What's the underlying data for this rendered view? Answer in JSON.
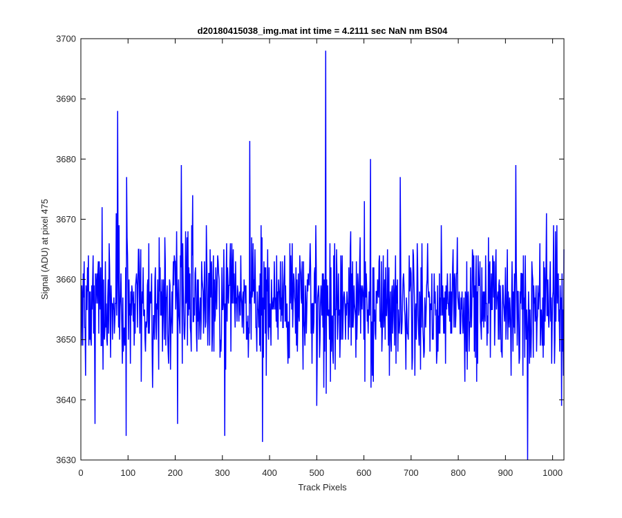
{
  "chart_data": {
    "type": "line",
    "title": "d20180415038_img.mat int time = 4.2111 sec  NaN nm BS04",
    "xlabel": "Track Pixels",
    "ylabel": "Signal (ADU) at pixel 475",
    "xlim": [
      0,
      1024
    ],
    "ylim": [
      3630,
      3700
    ],
    "xticks": [
      0,
      100,
      200,
      300,
      400,
      500,
      600,
      700,
      800,
      900,
      1000
    ],
    "yticks": [
      3630,
      3640,
      3650,
      3660,
      3670,
      3680,
      3690,
      3700
    ],
    "xtick_labels": [
      "0",
      "100",
      "200",
      "300",
      "400",
      "500",
      "600",
      "700",
      "800",
      "900",
      "1000"
    ],
    "ytick_labels": [
      "3630",
      "3640",
      "3650",
      "3660",
      "3670",
      "3680",
      "3690",
      "3700"
    ],
    "grid": false,
    "series": [
      {
        "color": "#0000ff",
        "x_start": 1,
        "x_step": 1,
        "baseline": 3656,
        "noise_sd": 5.5,
        "approx_values_at": [
          {
            "x": 10,
            "y": 3644
          },
          {
            "x": 30,
            "y": 3636
          },
          {
            "x": 45,
            "y": 3672
          },
          {
            "x": 78,
            "y": 3688
          },
          {
            "x": 96,
            "y": 3634
          },
          {
            "x": 97,
            "y": 3677
          },
          {
            "x": 205,
            "y": 3636
          },
          {
            "x": 213,
            "y": 3679
          },
          {
            "x": 305,
            "y": 3634
          },
          {
            "x": 358,
            "y": 3683
          },
          {
            "x": 385,
            "y": 3633
          },
          {
            "x": 519,
            "y": 3698
          },
          {
            "x": 520,
            "y": 3641
          },
          {
            "x": 614,
            "y": 3680
          },
          {
            "x": 620,
            "y": 3643
          },
          {
            "x": 922,
            "y": 3679
          },
          {
            "x": 947,
            "y": 3630
          },
          {
            "x": 1019,
            "y": 3639
          }
        ]
      }
    ]
  }
}
